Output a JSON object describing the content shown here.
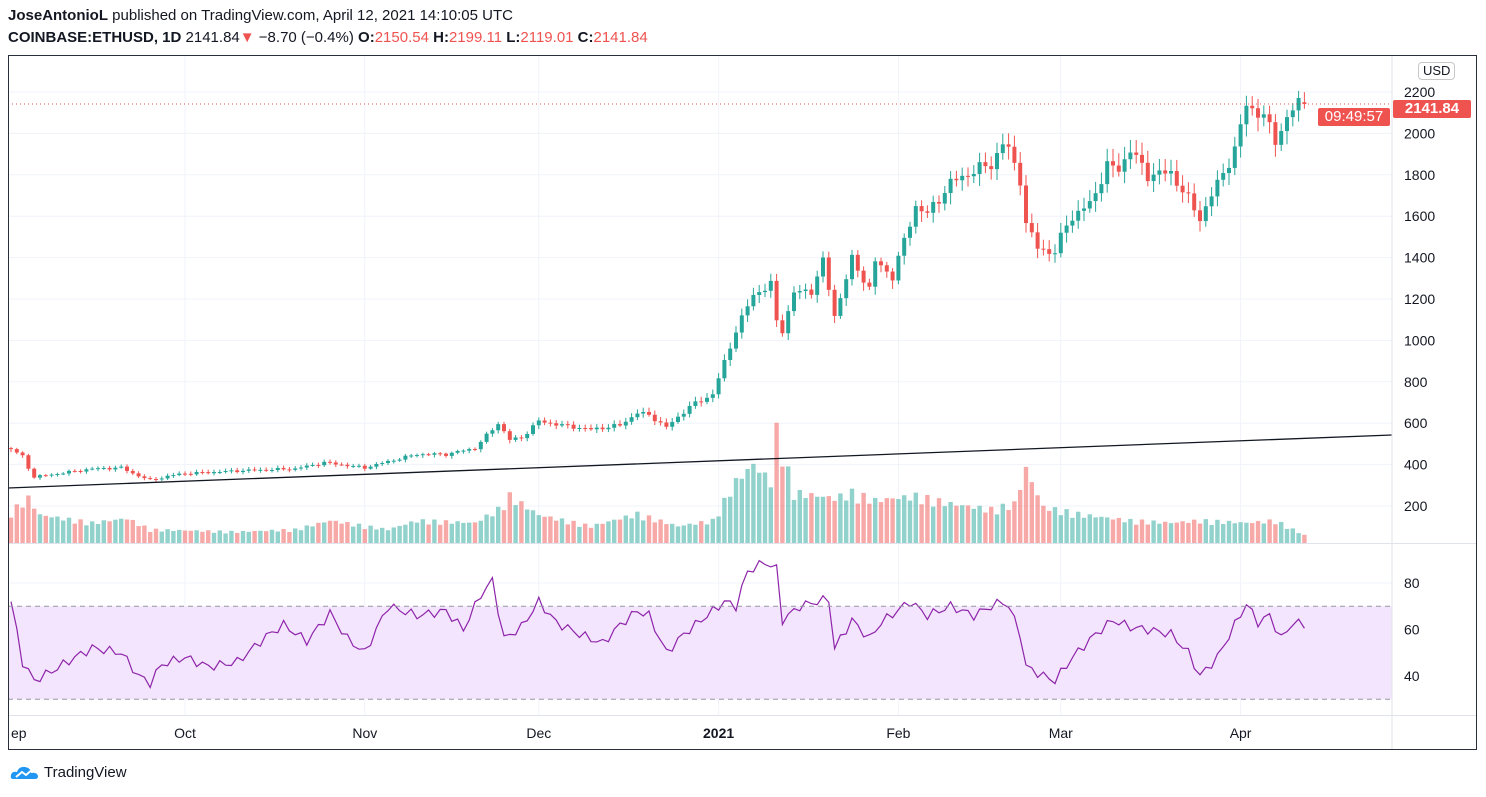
{
  "header": {
    "author": "JoseAntonioL",
    "published": " published on TradingView.com, April 12, 2021 14:10:05 UTC",
    "symbol": "COINBASE:ETHUSD, 1D",
    "last": "2141.84",
    "change": "−8.70 (−0.4%)",
    "o_label": "O:",
    "o": "2150.54",
    "h_label": "H:",
    "h": "2199.11",
    "l_label": "L:",
    "l": "2119.01",
    "c_label": "C:",
    "c": "2141.84"
  },
  "price_axis": {
    "currency": "USD",
    "last_price": "2141.84",
    "countdown": "09:49:57"
  },
  "footer": {
    "brand": "TradingView"
  },
  "colors": {
    "up": "#26a69a",
    "down": "#ef5350",
    "rsi": "#8e24aa",
    "rsi_band": "#f3e5fd"
  },
  "chart_data": [
    {
      "type": "candlestick",
      "symbol": "COINBASE:ETHUSD",
      "interval": "1D",
      "ylim": [
        200,
        2200
      ],
      "y_ticks": [
        "200",
        "400",
        "600",
        "800",
        "1000",
        "1200",
        "1400",
        "1600",
        "1800",
        "2000",
        "2200"
      ],
      "x_ticks": [
        {
          "label": "ep",
          "date": "2020-09-01"
        },
        {
          "label": "Oct",
          "date": "2020-10-01"
        },
        {
          "label": "Nov",
          "date": "2020-11-01"
        },
        {
          "label": "Dec",
          "date": "2020-12-01"
        },
        {
          "label": "2021",
          "date": "2021-01-01"
        },
        {
          "label": "Feb",
          "date": "2021-02-01"
        },
        {
          "label": "Mar",
          "date": "2021-03-01"
        },
        {
          "label": "Apr",
          "date": "2021-04-01"
        }
      ],
      "close_readings": [
        [
          "2020-09-01",
          475
        ],
        [
          "2020-09-03",
          440
        ],
        [
          "2020-09-04",
          385
        ],
        [
          "2020-09-05",
          340
        ],
        [
          "2020-09-10",
          360
        ],
        [
          "2020-09-15",
          380
        ],
        [
          "2020-09-20",
          385
        ],
        [
          "2020-09-23",
          345
        ],
        [
          "2020-09-25",
          325
        ],
        [
          "2020-09-30",
          355
        ],
        [
          "2020-10-10",
          370
        ],
        [
          "2020-10-20",
          380
        ],
        [
          "2020-10-25",
          410
        ],
        [
          "2020-11-01",
          385
        ],
        [
          "2020-11-05",
          415
        ],
        [
          "2020-11-10",
          450
        ],
        [
          "2020-11-15",
          450
        ],
        [
          "2020-11-20",
          480
        ],
        [
          "2020-11-24",
          600
        ],
        [
          "2020-11-26",
          520
        ],
        [
          "2020-11-28",
          530
        ],
        [
          "2020-12-01",
          610
        ],
        [
          "2020-12-05",
          590
        ],
        [
          "2020-12-10",
          570
        ],
        [
          "2020-12-15",
          590
        ],
        [
          "2020-12-18",
          650
        ],
        [
          "2020-12-20",
          640
        ],
        [
          "2020-12-23",
          580
        ],
        [
          "2020-12-27",
          680
        ],
        [
          "2020-12-31",
          740
        ],
        [
          "2021-01-03",
          970
        ],
        [
          "2021-01-04",
          1050
        ],
        [
          "2021-01-07",
          1220
        ],
        [
          "2021-01-10",
          1270
        ],
        [
          "2021-01-11",
          1090
        ],
        [
          "2021-01-12",
          1050
        ],
        [
          "2021-01-14",
          1230
        ],
        [
          "2021-01-17",
          1240
        ],
        [
          "2021-01-19",
          1380
        ],
        [
          "2021-01-21",
          1120
        ],
        [
          "2021-01-24",
          1390
        ],
        [
          "2021-01-27",
          1250
        ],
        [
          "2021-01-28",
          1380
        ],
        [
          "2021-01-31",
          1310
        ],
        [
          "2021-02-04",
          1650
        ],
        [
          "2021-02-06",
          1610
        ],
        [
          "2021-02-10",
          1760
        ],
        [
          "2021-02-14",
          1820
        ],
        [
          "2021-02-17",
          1850
        ],
        [
          "2021-02-19",
          1950
        ],
        [
          "2021-02-20",
          1920
        ],
        [
          "2021-02-22",
          1780
        ],
        [
          "2021-02-23",
          1560
        ],
        [
          "2021-02-25",
          1450
        ],
        [
          "2021-02-28",
          1420
        ],
        [
          "2021-03-02",
          1570
        ],
        [
          "2021-03-06",
          1660
        ],
        [
          "2021-03-09",
          1840
        ],
        [
          "2021-03-11",
          1830
        ],
        [
          "2021-03-13",
          1920
        ],
        [
          "2021-03-16",
          1800
        ],
        [
          "2021-03-20",
          1810
        ],
        [
          "2021-03-23",
          1680
        ],
        [
          "2021-03-25",
          1590
        ],
        [
          "2021-03-27",
          1700
        ],
        [
          "2021-03-31",
          1920
        ],
        [
          "2021-04-02",
          2140
        ],
        [
          "2021-04-05",
          2080
        ],
        [
          "2021-04-07",
          1970
        ],
        [
          "2021-04-09",
          2070
        ],
        [
          "2021-04-11",
          2150
        ]
      ],
      "last_candle": {
        "date": "2021-04-12",
        "open": 2150.54,
        "high": 2199.11,
        "low": 2119.01,
        "close": 2141.84
      },
      "trend_line": [
        [
          "2020-09-01",
          287
        ],
        [
          "2021-04-27",
          543
        ]
      ],
      "volume_relative": [
        [
          "2020-09-01",
          28
        ],
        [
          "2020-09-04",
          40
        ],
        [
          "2020-09-06",
          25
        ],
        [
          "2020-09-15",
          18
        ],
        [
          "2020-09-21",
          22
        ],
        [
          "2020-09-25",
          12
        ],
        [
          "2020-10-10",
          10
        ],
        [
          "2020-10-20",
          12
        ],
        [
          "2020-10-26",
          20
        ],
        [
          "2020-11-05",
          12
        ],
        [
          "2020-11-10",
          20
        ],
        [
          "2020-11-20",
          18
        ],
        [
          "2020-11-24",
          30
        ],
        [
          "2020-11-26",
          42
        ],
        [
          "2020-12-01",
          25
        ],
        [
          "2020-12-10",
          15
        ],
        [
          "2020-12-18",
          26
        ],
        [
          "2020-12-25",
          15
        ],
        [
          "2020-12-31",
          20
        ],
        [
          "2021-01-04",
          55
        ],
        [
          "2021-01-07",
          70
        ],
        [
          "2021-01-10",
          55
        ],
        [
          "2021-01-11",
          100
        ],
        [
          "2021-01-14",
          45
        ],
        [
          "2021-01-21",
          40
        ],
        [
          "2021-01-24",
          45
        ],
        [
          "2021-01-28",
          38
        ],
        [
          "2021-02-04",
          42
        ],
        [
          "2021-02-10",
          35
        ],
        [
          "2021-02-17",
          30
        ],
        [
          "2021-02-21",
          35
        ],
        [
          "2021-02-23",
          66
        ],
        [
          "2021-02-26",
          32
        ],
        [
          "2021-03-05",
          25
        ],
        [
          "2021-03-13",
          20
        ],
        [
          "2021-03-20",
          18
        ],
        [
          "2021-03-25",
          20
        ],
        [
          "2021-04-02",
          18
        ],
        [
          "2021-04-07",
          20
        ],
        [
          "2021-04-12",
          7
        ]
      ],
      "volume_unit": "relative (tallest bar = 100)"
    },
    {
      "type": "line",
      "indicator": "RSI",
      "ylim": [
        25,
        95
      ],
      "y_ticks": [
        "40",
        "60",
        "80"
      ],
      "band": [
        30,
        70
      ],
      "series": [
        [
          "2020-09-01",
          72
        ],
        [
          "2020-09-03",
          46
        ],
        [
          "2020-09-05",
          38
        ],
        [
          "2020-09-08",
          42
        ],
        [
          "2020-09-12",
          48
        ],
        [
          "2020-09-15",
          52
        ],
        [
          "2020-09-20",
          50
        ],
        [
          "2020-09-23",
          40
        ],
        [
          "2020-09-25",
          37
        ],
        [
          "2020-09-27",
          45
        ],
        [
          "2020-10-01",
          48
        ],
        [
          "2020-10-05",
          44
        ],
        [
          "2020-10-10",
          46
        ],
        [
          "2020-10-15",
          57
        ],
        [
          "2020-10-18",
          62
        ],
        [
          "2020-10-22",
          55
        ],
        [
          "2020-10-26",
          67
        ],
        [
          "2020-10-29",
          56
        ],
        [
          "2020-11-01",
          50
        ],
        [
          "2020-11-05",
          70
        ],
        [
          "2020-11-10",
          66
        ],
        [
          "2020-11-15",
          68
        ],
        [
          "2020-11-18",
          60
        ],
        [
          "2020-11-21",
          75
        ],
        [
          "2020-11-23",
          81
        ],
        [
          "2020-11-25",
          56
        ],
        [
          "2020-11-28",
          61
        ],
        [
          "2020-12-01",
          72
        ],
        [
          "2020-12-04",
          63
        ],
        [
          "2020-12-08",
          58
        ],
        [
          "2020-12-12",
          54
        ],
        [
          "2020-12-15",
          62
        ],
        [
          "2020-12-18",
          68
        ],
        [
          "2020-12-20",
          66
        ],
        [
          "2020-12-23",
          50
        ],
        [
          "2020-12-26",
          58
        ],
        [
          "2020-12-31",
          68
        ],
        [
          "2021-01-02",
          72
        ],
        [
          "2021-01-04",
          70
        ],
        [
          "2021-01-06",
          85
        ],
        [
          "2021-01-09",
          89
        ],
        [
          "2021-01-11",
          86
        ],
        [
          "2021-01-12",
          64
        ],
        [
          "2021-01-15",
          70
        ],
        [
          "2021-01-18",
          72
        ],
        [
          "2021-01-20",
          73
        ],
        [
          "2021-01-21",
          52
        ],
        [
          "2021-01-24",
          64
        ],
        [
          "2021-01-27",
          56
        ],
        [
          "2021-01-29",
          63
        ],
        [
          "2021-02-03",
          72
        ],
        [
          "2021-02-06",
          66
        ],
        [
          "2021-02-10",
          70
        ],
        [
          "2021-02-14",
          66
        ],
        [
          "2021-02-17",
          70
        ],
        [
          "2021-02-19",
          72
        ],
        [
          "2021-02-20",
          70
        ],
        [
          "2021-02-22",
          58
        ],
        [
          "2021-02-23",
          44
        ],
        [
          "2021-02-26",
          40
        ],
        [
          "2021-02-28",
          38
        ],
        [
          "2021-03-03",
          48
        ],
        [
          "2021-03-07",
          58
        ],
        [
          "2021-03-10",
          64
        ],
        [
          "2021-03-13",
          61
        ],
        [
          "2021-03-16",
          60
        ],
        [
          "2021-03-20",
          58
        ],
        [
          "2021-03-23",
          50
        ],
        [
          "2021-03-25",
          40
        ],
        [
          "2021-03-28",
          48
        ],
        [
          "2021-03-31",
          62
        ],
        [
          "2021-04-02",
          71
        ],
        [
          "2021-04-04",
          63
        ],
        [
          "2021-04-06",
          66
        ],
        [
          "2021-04-08",
          56
        ],
        [
          "2021-04-10",
          63
        ],
        [
          "2021-04-12",
          62
        ]
      ]
    }
  ]
}
